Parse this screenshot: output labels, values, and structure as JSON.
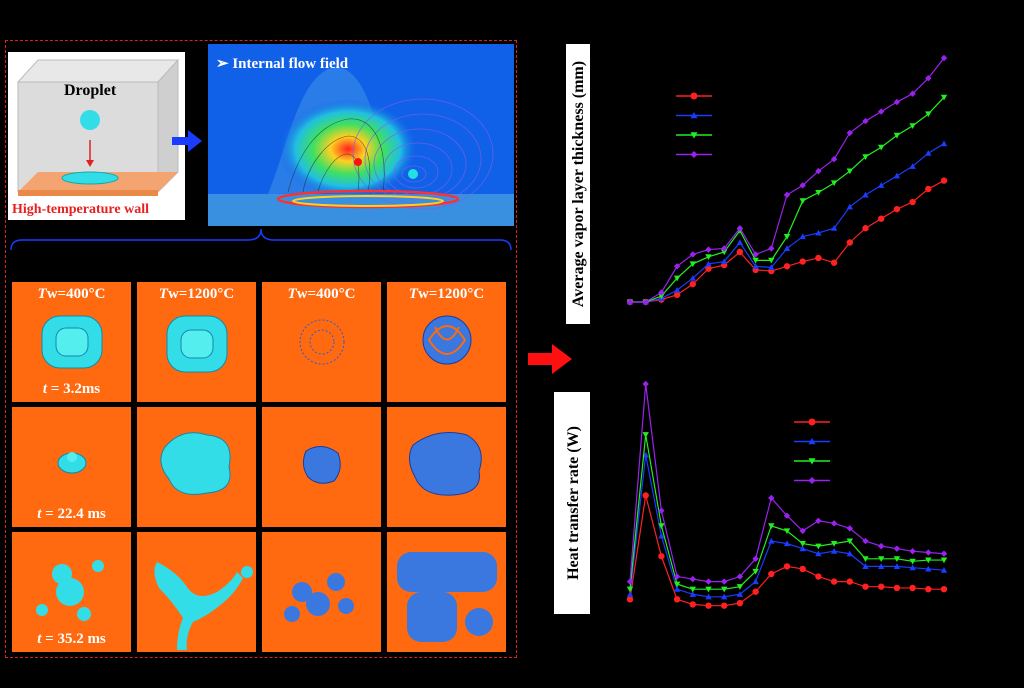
{
  "schematic": {
    "droplet_label": "Droplet",
    "wall_label": "High-temperature wall"
  },
  "flowfield": {
    "label": "Internal flow field"
  },
  "grid": {
    "columns": [
      {
        "prefix": "T",
        "text": "w=400°C"
      },
      {
        "prefix": "T",
        "text": "w=1200°C"
      },
      {
        "prefix": "T",
        "text": "w=400°C"
      },
      {
        "prefix": "T",
        "text": "w=1200°C"
      }
    ],
    "rows": [
      {
        "prefix": "t",
        "text": " = 3.2ms"
      },
      {
        "prefix": "t",
        "text": " = 22.4 ms"
      },
      {
        "prefix": "t",
        "text": " = 35.2 ms"
      }
    ]
  },
  "colors": {
    "red": "#ff2020",
    "blue": "#1a3cff",
    "green": "#22ee22",
    "violet": "#9a22ee",
    "cell_bg": "#ff6a10",
    "droplet": "#33dde8",
    "frame": "#e02020"
  },
  "chart_data": [
    {
      "type": "line",
      "ylabel": "Average vapor layer thickness (mm)",
      "x": [
        0,
        1,
        2,
        3,
        4,
        5,
        6,
        7,
        8,
        9,
        10,
        11,
        12,
        13,
        14,
        15,
        16,
        17,
        18,
        19,
        20
      ],
      "series": [
        {
          "color": "red",
          "marker": "circle",
          "values": [
            0.0,
            0.0,
            0.02,
            0.06,
            0.15,
            0.28,
            0.31,
            0.42,
            0.27,
            0.26,
            0.3,
            0.34,
            0.37,
            0.33,
            0.5,
            0.62,
            0.7,
            0.78,
            0.84,
            0.95,
            1.02
          ]
        },
        {
          "color": "blue",
          "marker": "triangle-up",
          "values": [
            0.0,
            0.0,
            0.03,
            0.1,
            0.2,
            0.32,
            0.34,
            0.5,
            0.3,
            0.29,
            0.45,
            0.55,
            0.58,
            0.62,
            0.8,
            0.9,
            0.98,
            1.06,
            1.14,
            1.25,
            1.33
          ]
        },
        {
          "color": "green",
          "marker": "triangle-down",
          "values": [
            0.0,
            0.0,
            0.05,
            0.2,
            0.32,
            0.38,
            0.42,
            0.6,
            0.35,
            0.35,
            0.55,
            0.85,
            0.92,
            1.0,
            1.1,
            1.22,
            1.3,
            1.4,
            1.48,
            1.58,
            1.72
          ]
        },
        {
          "color": "violet",
          "marker": "diamond",
          "values": [
            0.0,
            0.0,
            0.08,
            0.3,
            0.4,
            0.44,
            0.45,
            0.62,
            0.4,
            0.45,
            0.9,
            0.98,
            1.1,
            1.2,
            1.42,
            1.52,
            1.6,
            1.68,
            1.75,
            1.88,
            2.05
          ]
        }
      ]
    },
    {
      "type": "line",
      "ylabel": "Heat transfer rate (W)",
      "x": [
        0,
        1,
        2,
        3,
        4,
        5,
        6,
        7,
        8,
        9,
        10,
        11,
        12,
        13,
        14,
        15,
        16,
        17,
        18,
        19,
        20
      ],
      "series": [
        {
          "color": "red",
          "marker": "circle",
          "values": [
            0.5,
            4.6,
            2.2,
            0.5,
            0.3,
            0.25,
            0.25,
            0.35,
            0.8,
            1.5,
            1.8,
            1.7,
            1.4,
            1.2,
            1.2,
            1.0,
            1.0,
            0.95,
            0.95,
            0.9,
            0.9
          ]
        },
        {
          "color": "blue",
          "marker": "triangle-up",
          "values": [
            0.7,
            6.2,
            3.0,
            0.9,
            0.7,
            0.6,
            0.6,
            0.7,
            1.2,
            2.8,
            2.7,
            2.5,
            2.3,
            2.4,
            2.3,
            1.8,
            1.8,
            1.8,
            1.75,
            1.7,
            1.65
          ]
        },
        {
          "color": "green",
          "marker": "triangle-down",
          "values": [
            0.9,
            7.0,
            3.4,
            1.1,
            0.9,
            0.9,
            0.9,
            1.0,
            1.6,
            3.4,
            3.2,
            2.7,
            2.6,
            2.7,
            2.8,
            2.1,
            2.1,
            2.1,
            2.0,
            2.05,
            2.05
          ]
        },
        {
          "color": "violet",
          "marker": "diamond",
          "values": [
            1.2,
            9.0,
            4.0,
            1.4,
            1.3,
            1.2,
            1.2,
            1.4,
            2.1,
            4.5,
            3.8,
            3.2,
            3.6,
            3.5,
            3.3,
            2.8,
            2.6,
            2.5,
            2.4,
            2.35,
            2.3
          ]
        }
      ]
    }
  ]
}
